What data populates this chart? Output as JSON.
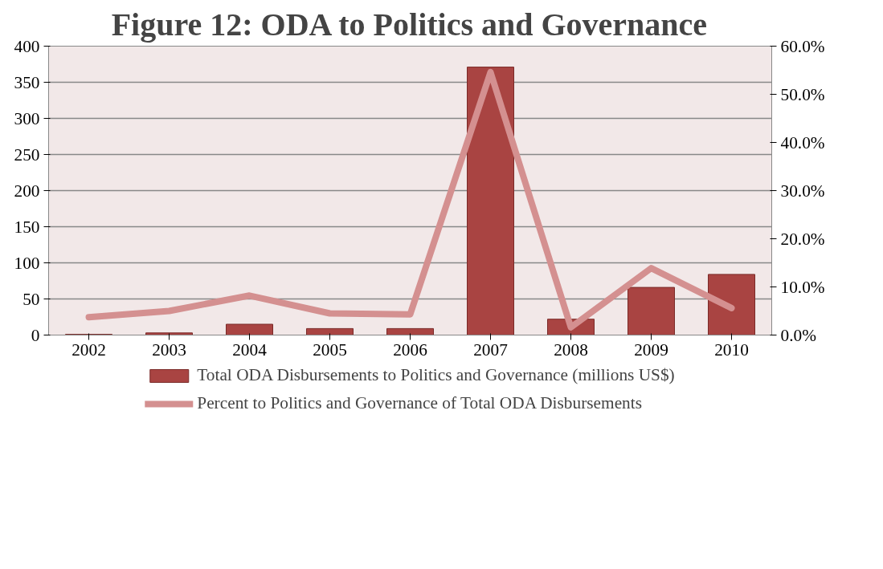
{
  "chart_data": {
    "type": "bar",
    "title": "Figure 12: ODA to Politics and Governance",
    "categories": [
      "2002",
      "2003",
      "2004",
      "2005",
      "2006",
      "2007",
      "2008",
      "2009",
      "2010"
    ],
    "series": [
      {
        "name": "Total ODA Disbursements to Politics and Governance (millions US$)",
        "color": "#a94442",
        "values": [
          1,
          3,
          15,
          9,
          9,
          371,
          22,
          66,
          84
        ]
      },
      {
        "name": "Percent to Politics and Governance of Total ODA Disbursements",
        "type": "line",
        "axis": "y2",
        "color": "#d49090",
        "values": [
          3.7,
          5.0,
          8.2,
          4.5,
          4.3,
          54.6,
          1.6,
          13.9,
          5.6
        ]
      }
    ],
    "ylim": [
      0,
      400
    ],
    "yticks": [
      0,
      50,
      100,
      150,
      200,
      250,
      300,
      350,
      400
    ],
    "y2lim": [
      0,
      60
    ],
    "y2ticks": [
      {
        "value": 0,
        "label": "0.0%"
      },
      {
        "value": 10,
        "label": "10.0%"
      },
      {
        "value": 20,
        "label": "20.0%"
      },
      {
        "value": 30,
        "label": "30.0%"
      },
      {
        "value": 40,
        "label": "40.0%"
      },
      {
        "value": 50,
        "label": "50.0%"
      },
      {
        "value": 60,
        "label": "60.0%"
      }
    ],
    "grid": "y",
    "legend": "bottom",
    "marker": "none"
  }
}
